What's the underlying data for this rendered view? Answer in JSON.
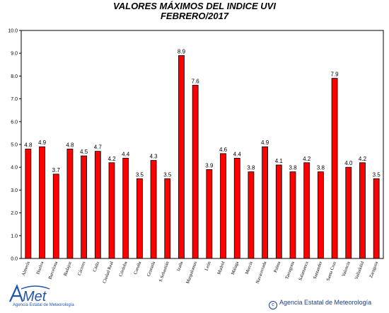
{
  "chart_data": {
    "type": "bar",
    "title": "VALORES MÁXIMOS DEL INDICE UVI",
    "subtitle": "FEBRERO/2017",
    "categories": [
      "Almería",
      "Huelva",
      "Barcelona",
      "Badajoz",
      "Cáceres",
      "Cádiz",
      "Ciudad Real",
      "Córdoba",
      "Coruña",
      "Granada",
      "S.Sebastián",
      "Izaña",
      "Maspalomas",
      "León",
      "Madrid",
      "Málaga",
      "Murcia",
      "Navacerrada",
      "Palma",
      "Tarragona",
      "Salamanca",
      "Santander",
      "Santa Cruz",
      "Valencia",
      "Valladolid",
      "Zaragoza"
    ],
    "values": [
      4.8,
      4.9,
      3.7,
      4.8,
      4.5,
      4.7,
      4.2,
      4.4,
      3.5,
      4.3,
      3.5,
      8.9,
      7.6,
      3.9,
      4.6,
      4.4,
      3.8,
      4.9,
      4.1,
      3.8,
      4.2,
      3.8,
      7.9,
      4.0,
      4.2,
      3.5
    ],
    "value_labels": [
      "4.8",
      "4.9",
      "3.7",
      "4.8",
      "4.5",
      "4.7",
      "4.2",
      "4.4",
      "3.5",
      "4.3",
      "3.5",
      "8.9",
      "7.6",
      "3.9",
      "4.6",
      "4.4",
      "3.8",
      "4.9",
      "4.1",
      "3.8",
      "4.2",
      "3.8",
      "7.9",
      "4.0",
      "4.2",
      "3.5"
    ],
    "ylim": [
      0,
      10
    ],
    "yticks": [
      "0.0",
      "1.0",
      "2.0",
      "3.0",
      "4.0",
      "5.0",
      "6.0",
      "7.0",
      "8.0",
      "9.0",
      "10.0"
    ],
    "grid": false,
    "bar_color": "#ff0000",
    "bar_edge_color": "#000000"
  },
  "footer": {
    "logo_text": "AEMet",
    "logo_subtext": "Agencia Estatal de Meteorología",
    "copyright_symbol": "c",
    "copyright_text": "Agencia Estatal de Meteorología"
  }
}
